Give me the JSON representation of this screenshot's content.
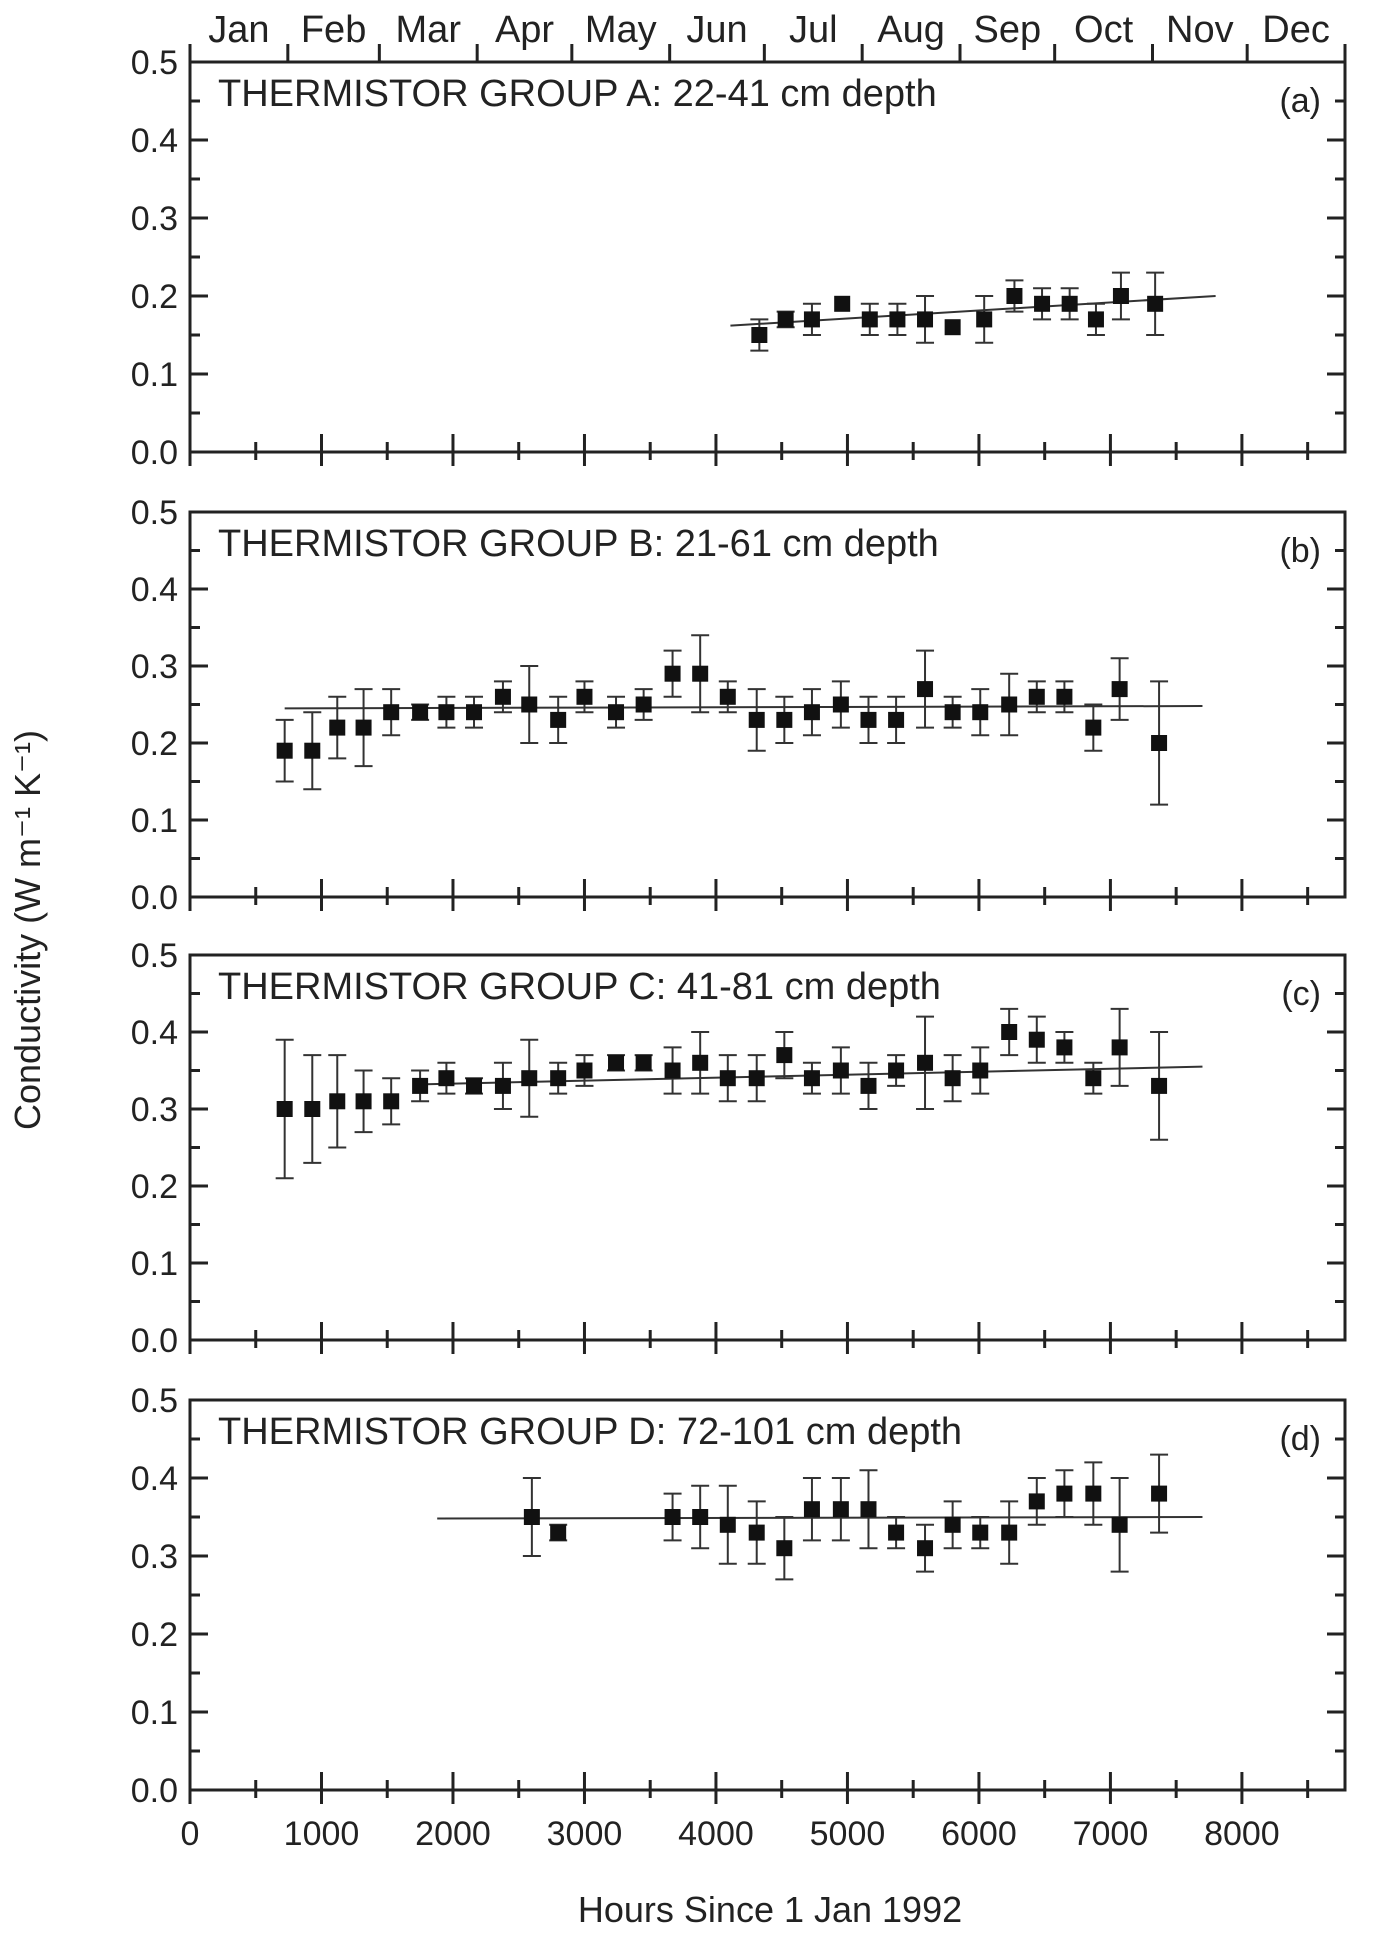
{
  "figure": {
    "top_axis_months": [
      "Jan",
      "Feb",
      "Mar",
      "Apr",
      "May",
      "Jun",
      "Jul",
      "Aug",
      "Sep",
      "Oct",
      "Nov",
      "Dec"
    ],
    "y_axis_title": "Conductivity (W m⁻¹ K⁻¹)",
    "x_axis_title": "Hours Since 1 Jan 1992",
    "x_tick_labels": [
      "0",
      "1000",
      "2000",
      "3000",
      "4000",
      "5000",
      "6000",
      "7000",
      "8000"
    ],
    "y_tick_labels": [
      "0.0",
      "0.1",
      "0.2",
      "0.3",
      "0.4",
      "0.5"
    ]
  },
  "chart_data": [
    {
      "type": "scatter",
      "title": "THERMISTOR GROUP A: 22-41 cm depth",
      "panel_tag": "(a)",
      "xlabel": "Hours Since 1 Jan 1992",
      "ylabel": "Conductivity (W m⁻¹ K⁻¹)",
      "xlim": [
        0,
        8784
      ],
      "ylim": [
        0,
        0.5
      ],
      "grid": false,
      "legend": "none",
      "series": [
        {
          "x": [
            4330,
            4530,
            4730,
            4960,
            5170,
            5380,
            5590,
            5800,
            6040,
            6270,
            6480,
            6690,
            6890,
            7080,
            7340
          ],
          "y": [
            0.15,
            0.17,
            0.17,
            0.19,
            0.17,
            0.17,
            0.17,
            0.16,
            0.17,
            0.2,
            0.19,
            0.19,
            0.17,
            0.2,
            0.19
          ],
          "err": [
            0.02,
            0.01,
            0.02,
            0.0,
            0.02,
            0.02,
            0.03,
            0.0,
            0.03,
            0.02,
            0.02,
            0.02,
            0.02,
            0.03,
            0.04
          ]
        }
      ],
      "fit": {
        "x": [
          4110,
          7800
        ],
        "y": [
          0.162,
          0.2
        ]
      }
    },
    {
      "type": "scatter",
      "title": "THERMISTOR GROUP B: 21-61 cm depth",
      "panel_tag": "(b)",
      "xlabel": "Hours Since 1 Jan 1992",
      "ylabel": "Conductivity (W m⁻¹ K⁻¹)",
      "xlim": [
        0,
        8784
      ],
      "ylim": [
        0,
        0.5
      ],
      "grid": false,
      "legend": "none",
      "series": [
        {
          "x": [
            720,
            930,
            1120,
            1320,
            1530,
            1750,
            1950,
            2160,
            2380,
            2580,
            2800,
            3000,
            3240,
            3450,
            3670,
            3880,
            4090,
            4310,
            4520,
            4730,
            4950,
            5160,
            5370,
            5590,
            5800,
            6010,
            6230,
            6440,
            6650,
            6870,
            7070,
            7370
          ],
          "y": [
            0.19,
            0.19,
            0.22,
            0.22,
            0.24,
            0.24,
            0.24,
            0.24,
            0.26,
            0.25,
            0.23,
            0.26,
            0.24,
            0.25,
            0.29,
            0.29,
            0.26,
            0.23,
            0.23,
            0.24,
            0.25,
            0.23,
            0.23,
            0.27,
            0.24,
            0.24,
            0.25,
            0.26,
            0.26,
            0.22,
            0.27,
            0.2
          ],
          "err": [
            0.04,
            0.05,
            0.04,
            0.05,
            0.03,
            0.01,
            0.02,
            0.02,
            0.02,
            0.05,
            0.03,
            0.02,
            0.02,
            0.02,
            0.03,
            0.05,
            0.02,
            0.04,
            0.03,
            0.03,
            0.03,
            0.03,
            0.03,
            0.05,
            0.02,
            0.03,
            0.04,
            0.02,
            0.02,
            0.03,
            0.04,
            0.08
          ]
        }
      ],
      "fit": {
        "x": [
          720,
          7700
        ],
        "y": [
          0.245,
          0.248
        ]
      }
    },
    {
      "type": "scatter",
      "title": "THERMISTOR GROUP C: 41-81 cm depth",
      "panel_tag": "(c)",
      "xlabel": "Hours Since 1 Jan 1992",
      "ylabel": "Conductivity (W m⁻¹ K⁻¹)",
      "xlim": [
        0,
        8784
      ],
      "ylim": [
        0,
        0.5
      ],
      "grid": false,
      "legend": "none",
      "series": [
        {
          "x": [
            720,
            930,
            1120,
            1320,
            1530,
            1750,
            1950,
            2160,
            2380,
            2580,
            2800,
            3000,
            3240,
            3450,
            3670,
            3880,
            4090,
            4310,
            4520,
            4730,
            4950,
            5160,
            5370,
            5590,
            5800,
            6010,
            6230,
            6440,
            6650,
            6870,
            7070,
            7370
          ],
          "y": [
            0.3,
            0.3,
            0.31,
            0.31,
            0.31,
            0.33,
            0.34,
            0.33,
            0.33,
            0.34,
            0.34,
            0.35,
            0.36,
            0.36,
            0.35,
            0.36,
            0.34,
            0.34,
            0.37,
            0.34,
            0.35,
            0.33,
            0.35,
            0.36,
            0.34,
            0.35,
            0.4,
            0.39,
            0.38,
            0.34,
            0.38,
            0.33
          ],
          "err": [
            0.09,
            0.07,
            0.06,
            0.04,
            0.03,
            0.02,
            0.02,
            0.01,
            0.03,
            0.05,
            0.02,
            0.02,
            0.01,
            0.01,
            0.03,
            0.04,
            0.03,
            0.03,
            0.03,
            0.02,
            0.03,
            0.03,
            0.02,
            0.06,
            0.03,
            0.03,
            0.03,
            0.03,
            0.02,
            0.02,
            0.05,
            0.07
          ]
        }
      ],
      "fit": {
        "x": [
          1750,
          7700
        ],
        "y": [
          0.332,
          0.355
        ]
      }
    },
    {
      "type": "scatter",
      "title": "THERMISTOR GROUP D: 72-101 cm depth",
      "panel_tag": "(d)",
      "xlabel": "Hours Since 1 Jan 1992",
      "ylabel": "Conductivity (W m⁻¹ K⁻¹)",
      "xlim": [
        0,
        8784
      ],
      "ylim": [
        0,
        0.5
      ],
      "grid": false,
      "legend": "none",
      "series": [
        {
          "x": [
            2600,
            2800,
            3670,
            3880,
            4090,
            4310,
            4520,
            4730,
            4950,
            5160,
            5370,
            5590,
            5800,
            6010,
            6230,
            6440,
            6650,
            6870,
            7070,
            7370
          ],
          "y": [
            0.35,
            0.33,
            0.35,
            0.35,
            0.34,
            0.33,
            0.31,
            0.36,
            0.36,
            0.36,
            0.33,
            0.31,
            0.34,
            0.33,
            0.33,
            0.37,
            0.38,
            0.38,
            0.34,
            0.38
          ],
          "err": [
            0.05,
            0.01,
            0.03,
            0.04,
            0.05,
            0.04,
            0.04,
            0.04,
            0.04,
            0.05,
            0.02,
            0.03,
            0.03,
            0.02,
            0.04,
            0.03,
            0.03,
            0.04,
            0.06,
            0.05
          ]
        }
      ],
      "fit": {
        "x": [
          1880,
          7700
        ],
        "y": [
          0.348,
          0.35
        ]
      }
    }
  ]
}
